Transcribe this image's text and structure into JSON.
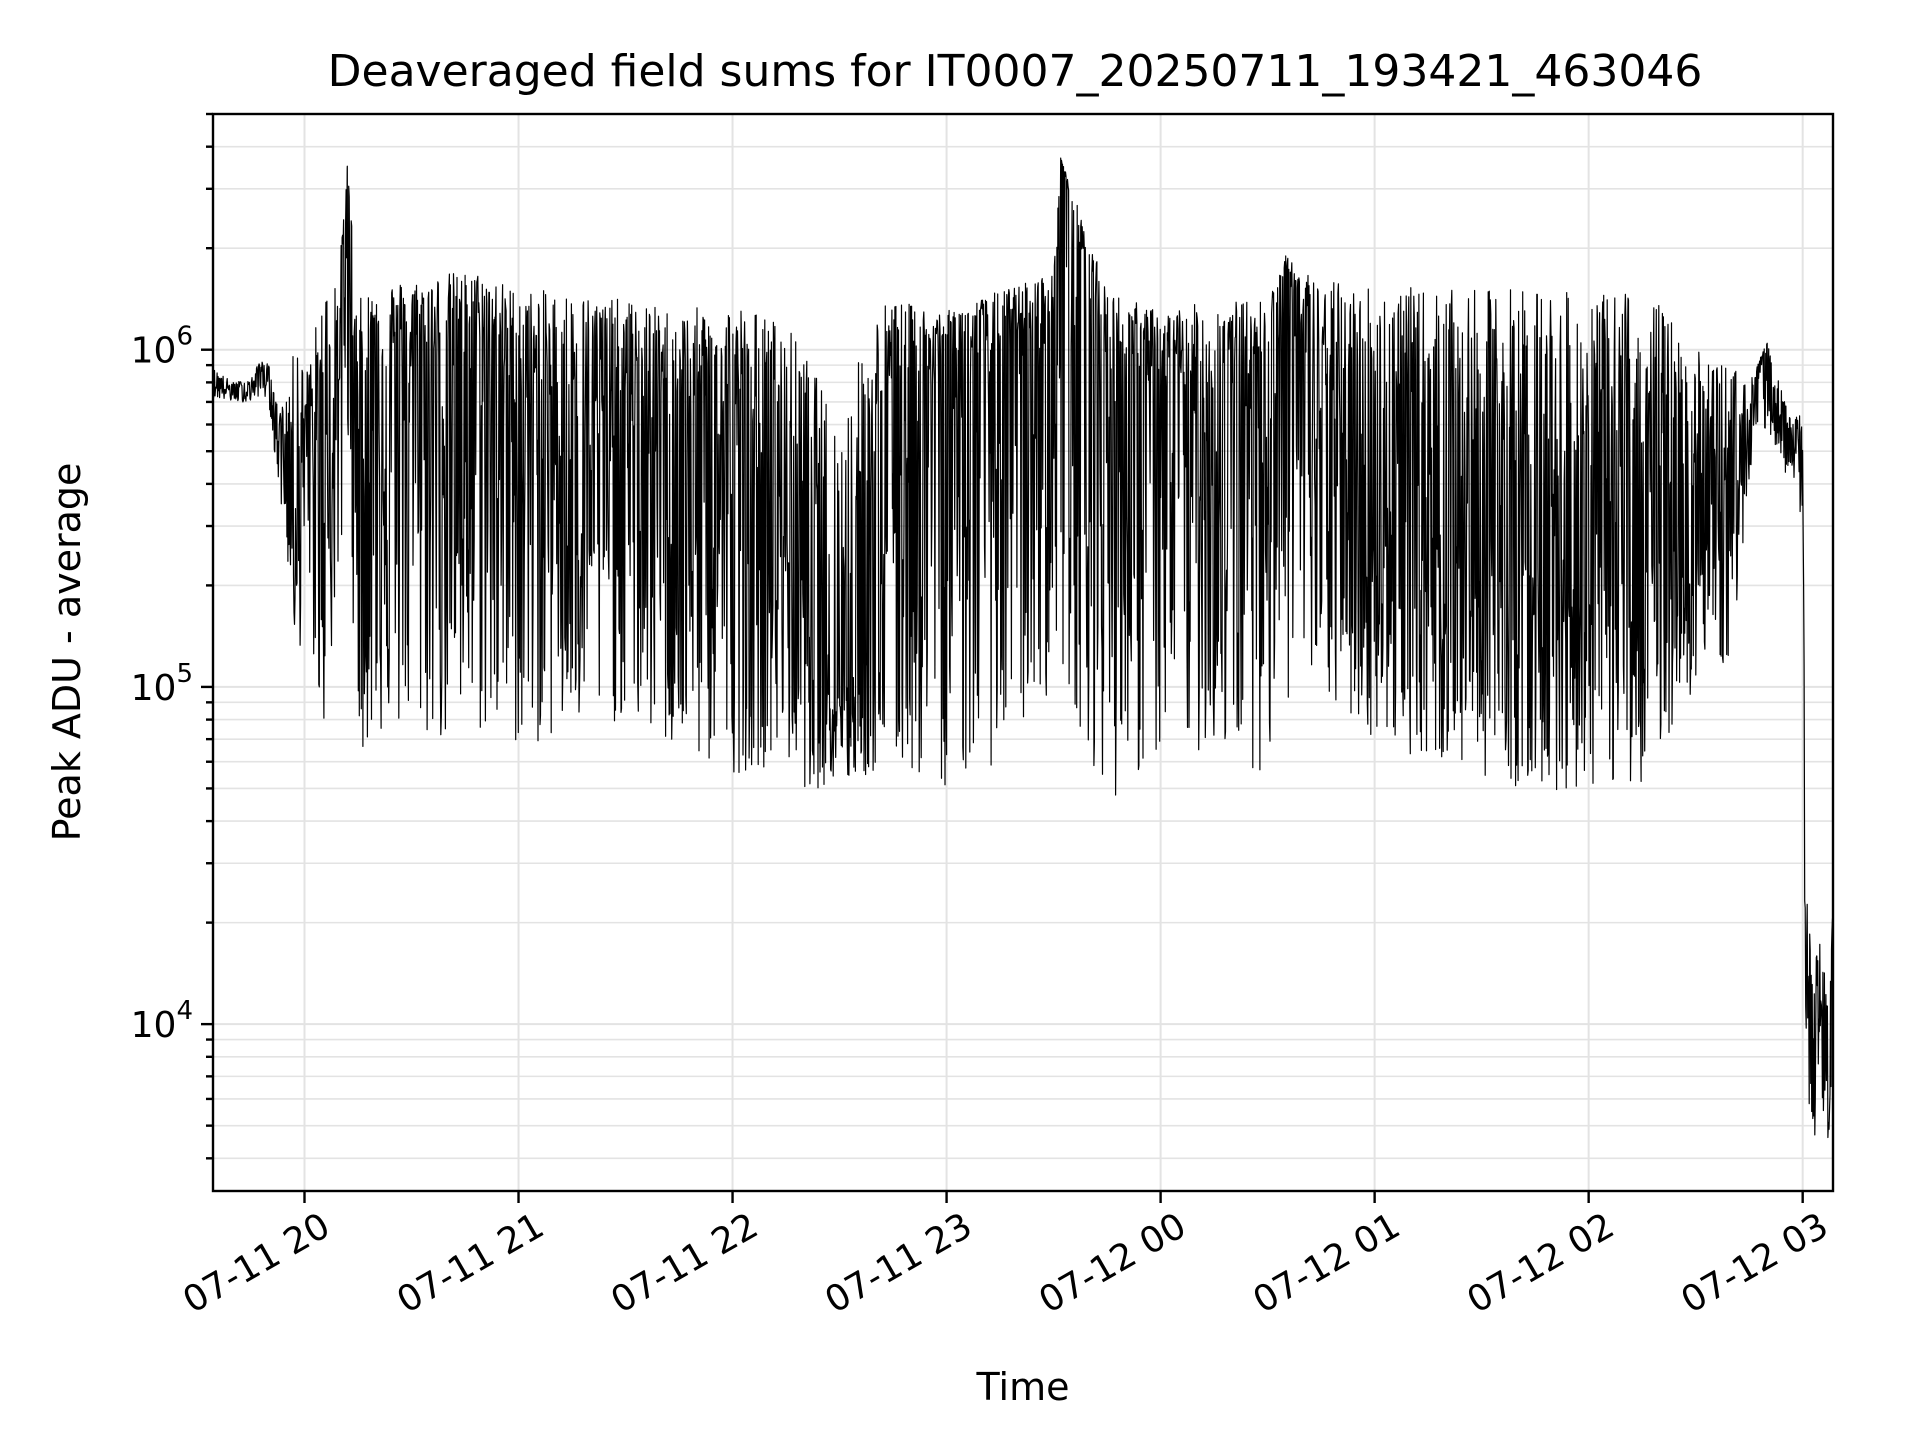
{
  "chart_data": {
    "type": "line",
    "title": "Deaveraged field sums for IT0007_20250711_193421_463046",
    "xlabel": "Time",
    "ylabel": "Peak ADU - average",
    "yscale": "log",
    "xlim": [
      "2025-07-11T19:34:21",
      "2025-07-12T03:08:30"
    ],
    "ylim": [
      3200,
      5000000
    ],
    "grid": true,
    "x_ticks": [
      {
        "t": "2025-07-11T20:00:00",
        "label": "07-11 20"
      },
      {
        "t": "2025-07-11T21:00:00",
        "label": "07-11 21"
      },
      {
        "t": "2025-07-11T22:00:00",
        "label": "07-11 22"
      },
      {
        "t": "2025-07-11T23:00:00",
        "label": "07-11 23"
      },
      {
        "t": "2025-07-12T00:00:00",
        "label": "07-12 00"
      },
      {
        "t": "2025-07-12T01:00:00",
        "label": "07-12 01"
      },
      {
        "t": "2025-07-12T02:00:00",
        "label": "07-12 02"
      },
      {
        "t": "2025-07-12T03:00:00",
        "label": "07-12 03"
      }
    ],
    "y_ticks": [
      {
        "value": 10000,
        "base": "10",
        "exp": "4"
      },
      {
        "value": 100000,
        "base": "10",
        "exp": "5"
      },
      {
        "value": 1000000,
        "base": "10",
        "exp": "6"
      }
    ],
    "series": [
      {
        "color": "#000000",
        "x": [
          "2025-07-11T19:34:21",
          "2025-07-11T19:40:00",
          "2025-07-11T19:45:00",
          "2025-07-11T19:48:00",
          "2025-07-11T19:50:00",
          "2025-07-11T19:52:00",
          "2025-07-11T19:55:00",
          "2025-07-11T19:58:00",
          "2025-07-11T20:00:00",
          "2025-07-11T20:05:00",
          "2025-07-11T20:10:00",
          "2025-07-11T20:12:00",
          "2025-07-11T20:15:00",
          "2025-07-11T20:20:00",
          "2025-07-11T20:30:00",
          "2025-07-11T20:40:00",
          "2025-07-11T20:50:00",
          "2025-07-11T21:00:00",
          "2025-07-11T21:15:00",
          "2025-07-11T21:30:00",
          "2025-07-11T21:45:00",
          "2025-07-11T22:00:00",
          "2025-07-11T22:15:00",
          "2025-07-11T22:20:00",
          "2025-07-11T22:30:00",
          "2025-07-11T22:40:00",
          "2025-07-11T22:45:00",
          "2025-07-11T23:00:00",
          "2025-07-11T23:15:00",
          "2025-07-11T23:30:00",
          "2025-07-11T23:32:00",
          "2025-07-11T23:45:00",
          "2025-07-12T00:00:00",
          "2025-07-12T00:15:00",
          "2025-07-12T00:30:00",
          "2025-07-12T00:35:00",
          "2025-07-12T00:45:00",
          "2025-07-12T01:00:00",
          "2025-07-12T01:15:00",
          "2025-07-12T01:30:00",
          "2025-07-12T01:45:00",
          "2025-07-12T02:00:00",
          "2025-07-12T02:15:00",
          "2025-07-12T02:30:00",
          "2025-07-12T02:40:00",
          "2025-07-12T02:45:00",
          "2025-07-12T02:50:00",
          "2025-07-12T02:55:00",
          "2025-07-12T02:57:00",
          "2025-07-12T02:59:00",
          "2025-07-12T03:00:00",
          "2025-07-12T03:01:00",
          "2025-07-12T03:03:00",
          "2025-07-12T03:05:00",
          "2025-07-12T03:07:00",
          "2025-07-12T03:08:30"
        ],
        "y": [
          800000,
          750000,
          760000,
          870000,
          800000,
          600000,
          500000,
          400000,
          600000,
          350000,
          900000,
          3500000,
          400000,
          800000,
          900000,
          800000,
          900000,
          700000,
          500000,
          600000,
          500000,
          400000,
          300000,
          200000,
          100000,
          150000,
          600000,
          900000,
          800000,
          1000000,
          3700000,
          800000,
          700000,
          600000,
          900000,
          1800000,
          500000,
          300000,
          350000,
          250000,
          250000,
          200000,
          250000,
          300000,
          350000,
          600000,
          1000000,
          500000,
          480000,
          600000,
          450000,
          9000,
          6000,
          13000,
          5000,
          20000
        ],
        "lo": [
          720000,
          700000,
          700000,
          740000,
          700000,
          450000,
          250000,
          100000,
          200000,
          70000,
          200000,
          500000,
          60000,
          70000,
          70000,
          65000,
          70000,
          65000,
          70000,
          80000,
          60000,
          55000,
          60000,
          50000,
          50000,
          55000,
          55000,
          50000,
          60000,
          100000,
          110000,
          45000,
          60000,
          65000,
          55000,
          90000,
          90000,
          70000,
          60000,
          55000,
          48000,
          50000,
          52000,
          100000,
          120000,
          400000,
          600000,
          430000,
          420000,
          400000,
          9000,
          5000,
          4500,
          5500,
          4500,
          6000
        ],
        "hi": [
          880000,
          800000,
          820000,
          950000,
          900000,
          700000,
          700000,
          1200000,
          800000,
          1500000,
          1900000,
          3500000,
          1400000,
          1600000,
          1600000,
          1700000,
          1700000,
          1500000,
          1500000,
          1400000,
          1300000,
          1400000,
          1200000,
          1000000,
          600000,
          1400000,
          1400000,
          1300000,
          1500000,
          1700000,
          3700000,
          1500000,
          1300000,
          1400000,
          1400000,
          1900000,
          1600000,
          1600000,
          1500000,
          1500000,
          1600000,
          1400000,
          1600000,
          1000000,
          900000,
          800000,
          1050000,
          700000,
          600000,
          650000,
          600000,
          25000,
          15000,
          18000,
          12000,
          24000
        ]
      }
    ]
  }
}
